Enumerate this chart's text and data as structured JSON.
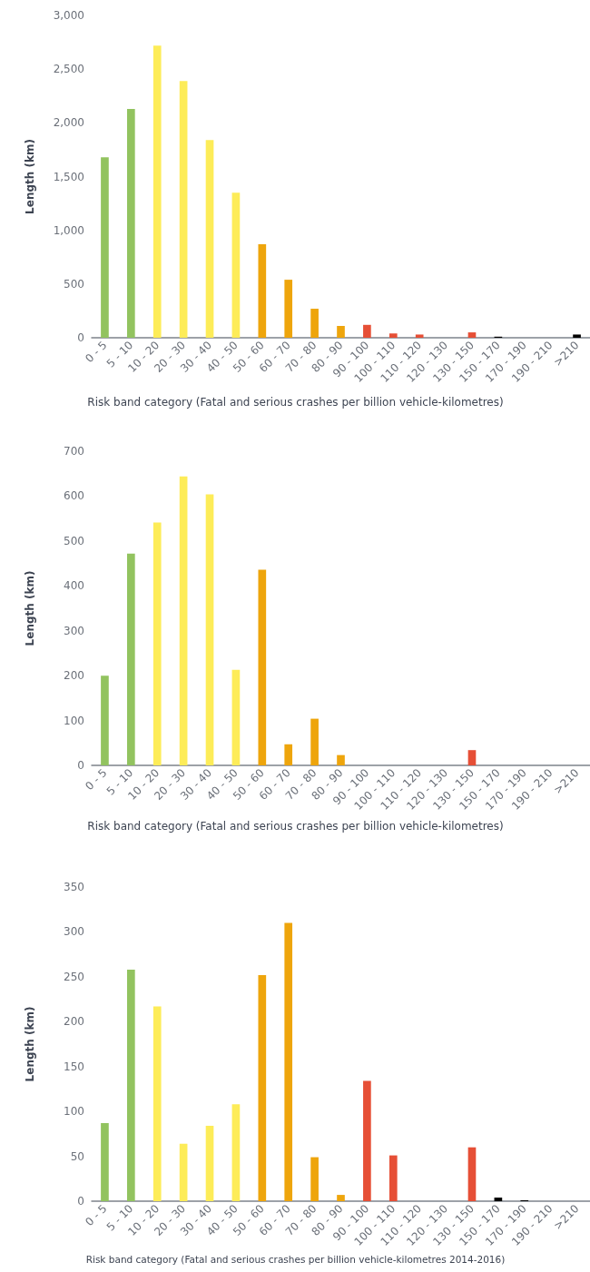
{
  "chart_data": [
    {
      "type": "bar",
      "xlabel": "Risk band category (Fatal and serious crashes per billion vehicle-kilometres)",
      "ylabel": "Length (km)",
      "categories": [
        "0 - 5",
        "5 - 10",
        "10 - 20",
        "20 - 30",
        "30 - 40",
        "40 - 50",
        "50 - 60",
        "60 - 70",
        "70 - 80",
        "80 - 90",
        "90 - 100",
        "100 - 110",
        "110 - 120",
        "120 - 130",
        "130 - 150",
        "150 - 170",
        "170 - 190",
        "190 - 210",
        ">210"
      ],
      "values": [
        1680,
        2130,
        2720,
        2390,
        1840,
        1350,
        870,
        540,
        270,
        110,
        120,
        40,
        30,
        0,
        50,
        10,
        0,
        0,
        30
      ],
      "colors": [
        "#92c35f",
        "#92c35f",
        "#fdec58",
        "#fdec58",
        "#fdec58",
        "#fdec58",
        "#eea50c",
        "#eea50c",
        "#eea50c",
        "#eea50c",
        "#e64f36",
        "#e64f36",
        "#e64f36",
        "#e64f36",
        "#e64f36",
        "#000000",
        "#000000",
        "#000000",
        "#000000"
      ],
      "ylim": [
        0,
        3000
      ],
      "yticks": [
        0,
        500,
        {
          "value": 1000,
          "label": "1,000"
        },
        {
          "value": 1500,
          "label": "1,500"
        },
        {
          "value": 2000,
          "label": "2,000"
        },
        {
          "value": 2500,
          "label": "2,500"
        },
        {
          "value": 3000,
          "label": "3,000"
        }
      ]
    },
    {
      "type": "bar",
      "xlabel": "Risk band category (Fatal and serious crashes per billion vehicle-kilometres)",
      "ylabel": "Length (km)",
      "categories": [
        "0 - 5",
        "5 - 10",
        "10 - 20",
        "20 - 30",
        "30 - 40",
        "40 - 50",
        "50 - 60",
        "60 - 70",
        "70 - 80",
        "80 - 90",
        "90 - 100",
        "100 - 110",
        "110 - 120",
        "120 - 130",
        "130 - 150",
        "150 - 170",
        "170 - 190",
        "190 - 210",
        ">210"
      ],
      "values": [
        200,
        472,
        541,
        644,
        604,
        213,
        436,
        47,
        104,
        23,
        0,
        0,
        0,
        0,
        34,
        0,
        0,
        0,
        0
      ],
      "colors": [
        "#92c35f",
        "#92c35f",
        "#fdec58",
        "#fdec58",
        "#fdec58",
        "#fdec58",
        "#eea50c",
        "#eea50c",
        "#eea50c",
        "#eea50c",
        "#e64f36",
        "#e64f36",
        "#e64f36",
        "#e64f36",
        "#e64f36",
        "#000000",
        "#000000",
        "#000000",
        "#000000"
      ],
      "ylim": [
        0,
        700
      ],
      "yticks": [
        0,
        100,
        200,
        300,
        400,
        500,
        600,
        700
      ]
    },
    {
      "type": "bar",
      "xlabel": "Risk band category (Fatal and serious crashes per billion vehicle-kilometres 2014-2016)",
      "ylabel": "Length (km)",
      "categories": [
        "0 - 5",
        "5 - 10",
        "10 - 20",
        "20 - 30",
        "30 - 40",
        "40 - 50",
        "50 - 60",
        "60 - 70",
        "70 - 80",
        "80 - 90",
        "90 - 100",
        "100 - 110",
        "110 - 120",
        "120 - 130",
        "130 - 150",
        "150 - 170",
        "170 - 190",
        "190 - 210",
        ">210"
      ],
      "values": [
        87,
        258,
        217,
        64,
        84,
        108,
        252,
        310,
        49,
        7,
        134,
        51,
        0,
        0,
        60,
        4,
        1,
        0,
        0
      ],
      "colors": [
        "#92c35f",
        "#92c35f",
        "#fdec58",
        "#fdec58",
        "#fdec58",
        "#fdec58",
        "#eea50c",
        "#eea50c",
        "#eea50c",
        "#eea50c",
        "#e64f36",
        "#e64f36",
        "#e64f36",
        "#e64f36",
        "#e64f36",
        "#000000",
        "#000000",
        "#000000",
        "#000000"
      ],
      "ylim": [
        0,
        350
      ],
      "yticks": [
        0,
        50,
        100,
        150,
        200,
        250,
        300,
        350
      ]
    }
  ]
}
